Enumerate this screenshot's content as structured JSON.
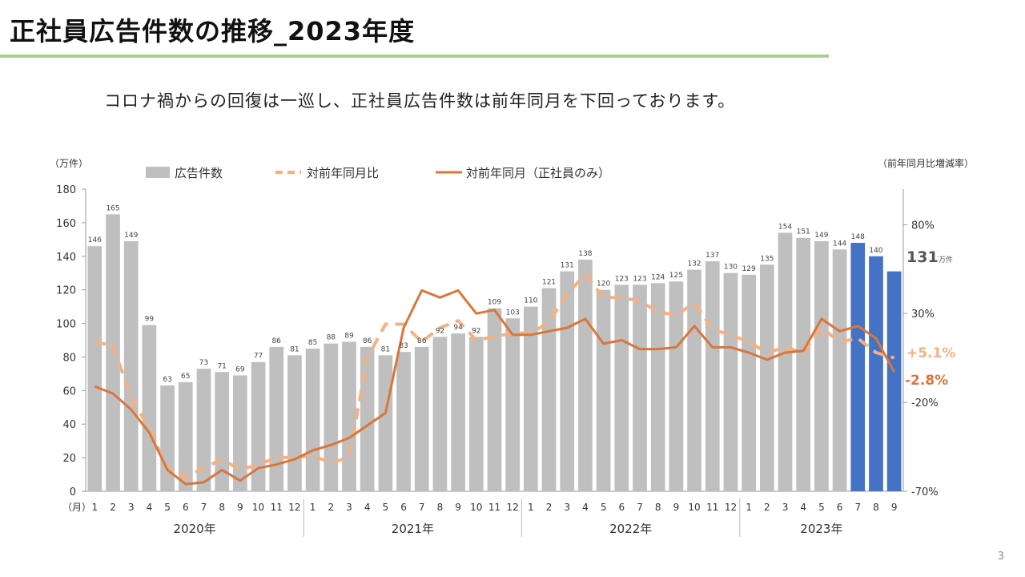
{
  "page": {
    "title": "正社員広告件数の推移_2023年度",
    "subtitle": "コロナ禍からの回復は一巡し、正社員広告件数は前年同月を下回っております。",
    "page_number": "3"
  },
  "chart_data": {
    "type": "bar",
    "left_axis_unit": "（万件）",
    "right_axis_unit": "（前年同月比増減率）",
    "x_axis_unit": "（月）",
    "left_ylim": [
      0,
      180
    ],
    "left_ticks": [
      "0",
      "20",
      "40",
      "60",
      "80",
      "100",
      "120",
      "140",
      "160",
      "180"
    ],
    "right_ylim": [
      -70,
      100
    ],
    "right_ticks": [
      "-70%",
      "-20%",
      "30%",
      "80%"
    ],
    "month_labels": [
      "1",
      "2",
      "3",
      "4",
      "5",
      "6",
      "7",
      "8",
      "9",
      "10",
      "11",
      "12",
      "1",
      "2",
      "3",
      "4",
      "5",
      "6",
      "7",
      "8",
      "9",
      "10",
      "11",
      "12",
      "1",
      "2",
      "3",
      "4",
      "5",
      "6",
      "7",
      "8",
      "9",
      "10",
      "11",
      "12",
      "1",
      "2",
      "3",
      "4",
      "5",
      "6",
      "7",
      "8",
      "9"
    ],
    "year_groups": [
      {
        "label": "2020年",
        "count": 12
      },
      {
        "label": "2021年",
        "count": 12
      },
      {
        "label": "2022年",
        "count": 12
      },
      {
        "label": "2023年",
        "count": 9
      }
    ],
    "highlight_from_index": 42,
    "series": [
      {
        "name": "広告件数",
        "kind": "bar",
        "axis": "left",
        "color": "#bfbfbf",
        "highlight_color": "#4472c4",
        "values": [
          146,
          165,
          149,
          99,
          63,
          65,
          73,
          71,
          69,
          77,
          86,
          81,
          85,
          88,
          89,
          86,
          81,
          83,
          86,
          92,
          94,
          92,
          109,
          103,
          110,
          121,
          131,
          138,
          120,
          123,
          123,
          124,
          125,
          132,
          137,
          130,
          129,
          135,
          154,
          151,
          149,
          144,
          148,
          140,
          131
        ],
        "data_labels": [
          "146",
          "165",
          "149",
          "99",
          "63",
          "65",
          "73",
          "71",
          "69",
          "77",
          "86",
          "81",
          "85",
          "88",
          "89",
          "86",
          "81",
          "83",
          "86",
          "92",
          "94",
          "92",
          "109",
          "103",
          "110",
          "121",
          "131",
          "138",
          "120",
          "123",
          "123",
          "124",
          "125",
          "132",
          "137",
          "130",
          "129",
          "135",
          "154",
          "151",
          "149",
          "144",
          "148",
          "140",
          ""
        ]
      },
      {
        "name": "対前年同月比",
        "kind": "line",
        "style": "dashed",
        "axis": "right",
        "color": "#f4b183",
        "values": [
          14,
          12,
          -17,
          -35,
          -57,
          -62,
          -57,
          -52,
          -58,
          -55,
          -51,
          -51,
          -50,
          -54,
          -51,
          5,
          24,
          24,
          14,
          22,
          26,
          15,
          17,
          19,
          19,
          25,
          41,
          52,
          39,
          39,
          37,
          31,
          29,
          36,
          21,
          18,
          14,
          8,
          11,
          8,
          22,
          14,
          16,
          8,
          5.1
        ]
      },
      {
        "name": "対前年同月（正社員のみ）",
        "kind": "line",
        "style": "solid",
        "axis": "right",
        "color": "#d9773a",
        "values": [
          -11,
          -15,
          -24,
          -37,
          -58,
          -66,
          -65,
          -58,
          -64,
          -57,
          -55,
          -52,
          -47,
          -44,
          -40,
          -33,
          -26,
          22,
          43,
          39,
          43,
          30,
          32,
          18,
          18,
          20,
          22,
          27,
          13,
          15,
          10,
          10,
          11,
          23,
          11,
          11,
          8,
          4,
          8,
          9,
          27,
          20,
          23,
          16,
          -2.8
        ]
      }
    ],
    "end_annotations": {
      "bar_last": "131",
      "bar_last_unit": "万件",
      "yoy_last": "+5.1%",
      "fulltime_last": "-2.8%"
    }
  }
}
